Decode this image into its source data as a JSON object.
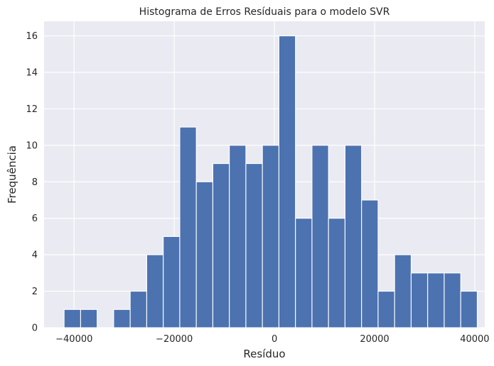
{
  "chart_data": {
    "type": "bar",
    "title": "Histograma de Erros Resíduais para o modelo SVR",
    "xlabel": "Resíduo",
    "ylabel": "Frequência",
    "xlim": [
      -46000,
      42000
    ],
    "ylim": [
      0,
      16.8
    ],
    "xticks": [
      -40000,
      -20000,
      0,
      20000,
      40000
    ],
    "xtick_labels": [
      "−40000",
      "−20000",
      "0",
      "20000",
      "40000"
    ],
    "yticks": [
      0,
      2,
      4,
      6,
      8,
      10,
      12,
      14,
      16
    ],
    "ytick_labels": [
      "0",
      "2",
      "4",
      "6",
      "8",
      "10",
      "12",
      "14",
      "16"
    ],
    "bin_edges": [
      -42000,
      -38700,
      -35400,
      -32100,
      -28800,
      -25500,
      -22200,
      -18900,
      -15600,
      -12300,
      -9000,
      -5700,
      -2400,
      900,
      4200,
      7500,
      10800,
      14100,
      17400,
      20700,
      24000,
      27300,
      30600,
      33900,
      37200,
      40500
    ],
    "values": [
      1,
      1,
      0,
      1,
      2,
      4,
      5,
      11,
      8,
      9,
      10,
      9,
      10,
      16,
      6,
      10,
      6,
      10,
      7,
      2,
      4,
      3,
      3,
      3,
      2
    ],
    "grid": true,
    "background": "#eaeaf2",
    "bar_color": "#4c72b0"
  }
}
